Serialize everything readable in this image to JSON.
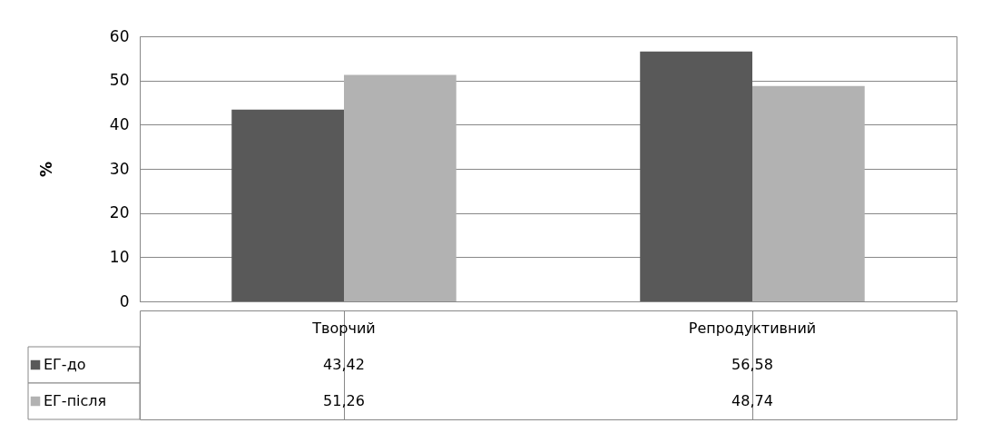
{
  "chart_data": {
    "type": "bar",
    "ylabel": "%",
    "categories": [
      "Творчий",
      "Репродуктивний"
    ],
    "series": [
      {
        "name": "ЕГ-до",
        "color": "#595959",
        "values": [
          43.42,
          56.58
        ],
        "value_labels": [
          "43,42",
          "56,58"
        ]
      },
      {
        "name": "ЕГ-після",
        "color": "#b2b2b2",
        "values": [
          51.26,
          48.74
        ],
        "value_labels": [
          "51,26",
          "48,74"
        ]
      }
    ],
    "ylim": [
      0,
      60
    ],
    "yticks": [
      0,
      10,
      20,
      30,
      40,
      50,
      60
    ],
    "grid": "y",
    "legend": "bottom left"
  }
}
